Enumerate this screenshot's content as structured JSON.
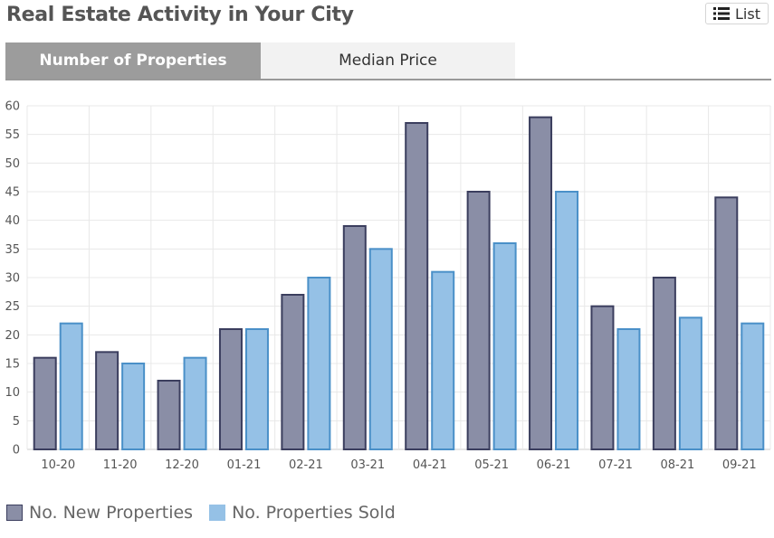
{
  "header": {
    "title": "Real Estate Activity in Your City",
    "list_label": "List"
  },
  "tabs": [
    {
      "label": "Number of Properties",
      "active": true
    },
    {
      "label": "Median Price",
      "active": false
    }
  ],
  "colors": {
    "new_fill": "#8a8ea6",
    "new_stroke": "#3b3e5e",
    "sold_fill": "#95c1e6",
    "sold_stroke": "#4a90c8",
    "grid": "#e8e8e8",
    "axis": "#cccccc"
  },
  "chart_data": {
    "type": "bar",
    "title": "",
    "xlabel": "",
    "ylabel": "",
    "ylim": [
      0,
      60
    ],
    "yticks": [
      0,
      5,
      10,
      15,
      20,
      25,
      30,
      35,
      40,
      45,
      50,
      55,
      60
    ],
    "categories": [
      "10-20",
      "11-20",
      "12-20",
      "01-21",
      "02-21",
      "03-21",
      "04-21",
      "05-21",
      "06-21",
      "07-21",
      "08-21",
      "09-21"
    ],
    "series": [
      {
        "name": "No. New Properties",
        "values": [
          16,
          17,
          12,
          21,
          27,
          39,
          57,
          45,
          58,
          25,
          30,
          44
        ]
      },
      {
        "name": "No. Properties Sold",
        "values": [
          22,
          15,
          16,
          21,
          30,
          35,
          31,
          36,
          45,
          21,
          23,
          22
        ]
      }
    ],
    "legend_position": "bottom-left"
  }
}
